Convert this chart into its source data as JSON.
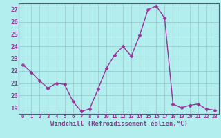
{
  "x": [
    0,
    1,
    2,
    3,
    4,
    5,
    6,
    7,
    8,
    9,
    10,
    11,
    12,
    13,
    14,
    15,
    16,
    17,
    18,
    19,
    20,
    21,
    22,
    23
  ],
  "y": [
    22.5,
    21.9,
    21.2,
    20.6,
    21.0,
    20.9,
    19.5,
    18.7,
    18.9,
    20.5,
    22.2,
    23.3,
    24.0,
    23.2,
    24.9,
    27.0,
    27.3,
    26.3,
    19.3,
    19.0,
    19.2,
    19.3,
    18.9,
    18.8
  ],
  "xlabel": "Windchill (Refroidissement éolien,°C)",
  "ylim": [
    18.5,
    27.5
  ],
  "yticks": [
    19,
    20,
    21,
    22,
    23,
    24,
    25,
    26,
    27
  ],
  "xticks": [
    0,
    1,
    2,
    3,
    4,
    5,
    6,
    7,
    8,
    9,
    10,
    11,
    12,
    13,
    14,
    15,
    16,
    17,
    18,
    19,
    20,
    21,
    22,
    23
  ],
  "line_color": "#993399",
  "marker_color": "#993399",
  "bg_color": "#b2eeee",
  "grid_color": "#99cccc",
  "spine_color": "#993399"
}
